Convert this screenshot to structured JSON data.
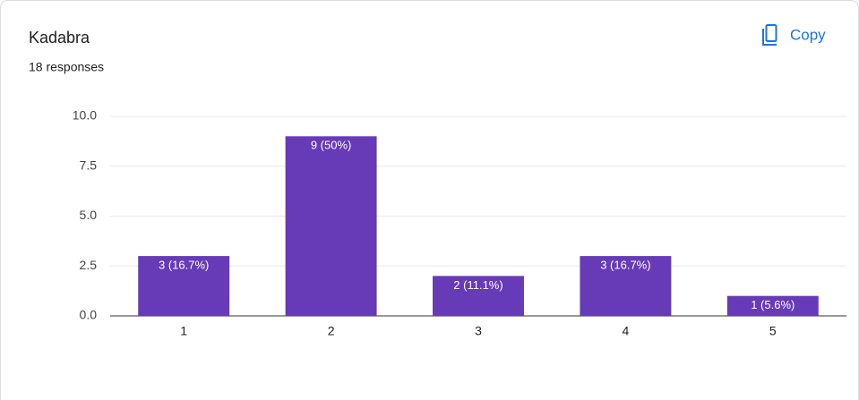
{
  "chart_data": {
    "type": "bar",
    "title": "Kadabra",
    "subtitle": "18 responses",
    "button": "Copy",
    "categories": [
      "1",
      "2",
      "3",
      "4",
      "5"
    ],
    "values": [
      3,
      9,
      2,
      3,
      1
    ],
    "value_labels": [
      "3 (16.7%)",
      "9 (50%)",
      "2 (11.1%)",
      "3 (16.7%)",
      "1 (5.6%)"
    ],
    "color": "#673ab7",
    "ylim": [
      0,
      10
    ],
    "yticks": [
      {
        "value": 0,
        "label": "0.0"
      },
      2.5,
      {
        "value": 5,
        "label": "5.0"
      },
      7.5,
      {
        "value": 10,
        "label": "10.0"
      }
    ],
    "grid": true
  }
}
